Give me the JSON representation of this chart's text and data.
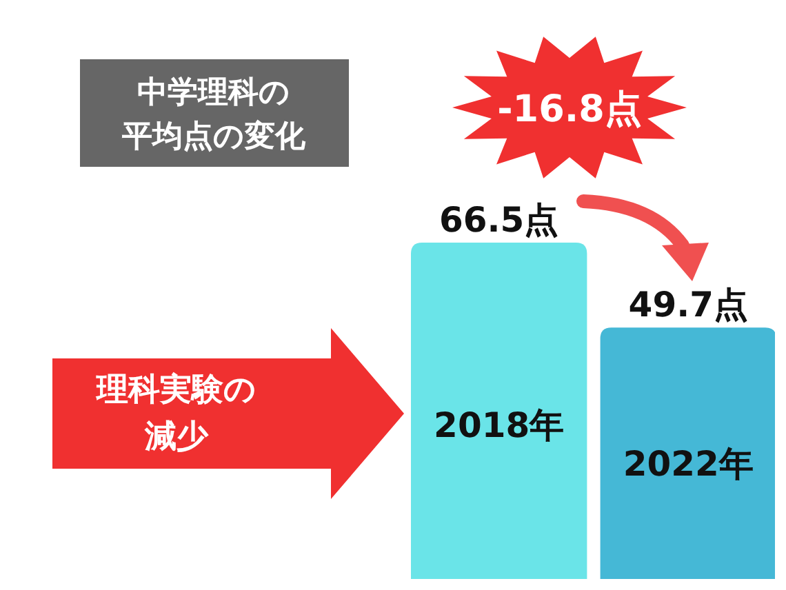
{
  "chart_data": {
    "type": "bar",
    "title": "中学理科の平均点の変化",
    "categories": [
      "2018年",
      "2022年"
    ],
    "values": [
      66.5,
      49.7
    ],
    "value_labels": [
      "66.5点",
      "49.7点"
    ],
    "colors": [
      "#6ae4e8",
      "#45b8d6"
    ],
    "annotations": [
      "-16.8点",
      "理科実験の減少"
    ]
  }
}
